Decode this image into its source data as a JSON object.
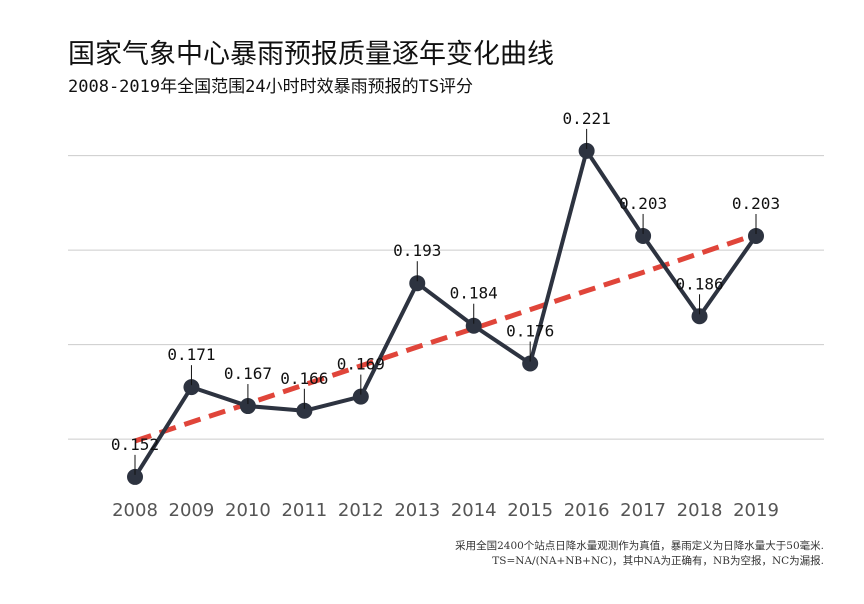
{
  "title": "国家气象中心暴雨预报质量逐年变化曲线",
  "subtitle": "2008-2019年全国范围24小时时效暴雨预报的TS评分",
  "notes": [
    "采用全国2400个站点日降水量观测作为真值，暴雨定义为日降水量大于50毫米.",
    "TS=NA/(NA+NB+NC)，其中NA为正确有，NB为空报，NC为漏报."
  ],
  "colors": {
    "series": "#2d3340",
    "trend": "#e0453a",
    "grid": "#cccccc",
    "tick_text": "#555555"
  },
  "chart_data": {
    "type": "line",
    "x": [
      "2008",
      "2009",
      "2010",
      "2011",
      "2012",
      "2013",
      "2014",
      "2015",
      "2016",
      "2017",
      "2018",
      "2019"
    ],
    "series": [
      {
        "values": [
          0.152,
          0.171,
          0.167,
          0.166,
          0.169,
          0.193,
          0.184,
          0.176,
          0.221,
          0.203,
          0.186,
          0.203
        ],
        "labels": [
          "0.152",
          "0.171",
          "0.167",
          "0.166",
          "0.169",
          "0.193",
          "0.184",
          "0.176",
          "0.221",
          "0.203",
          "0.186",
          "0.203"
        ],
        "style": "solid-with-markers"
      },
      {
        "style": "dashed-trend",
        "values": [
          0.1596,
          0.1636,
          0.1675,
          0.1715,
          0.1755,
          0.1795,
          0.1834,
          0.1874,
          0.1914,
          0.1953,
          0.1993,
          0.2033
        ]
      }
    ],
    "ylim": [
      0.145,
      0.225
    ],
    "y_gridlines": [
      0.16,
      0.18,
      0.2,
      0.22
    ],
    "y_ticklabels_shown": false,
    "grid": "horizontal",
    "legend": "none",
    "xlabel": "",
    "ylabel": ""
  }
}
